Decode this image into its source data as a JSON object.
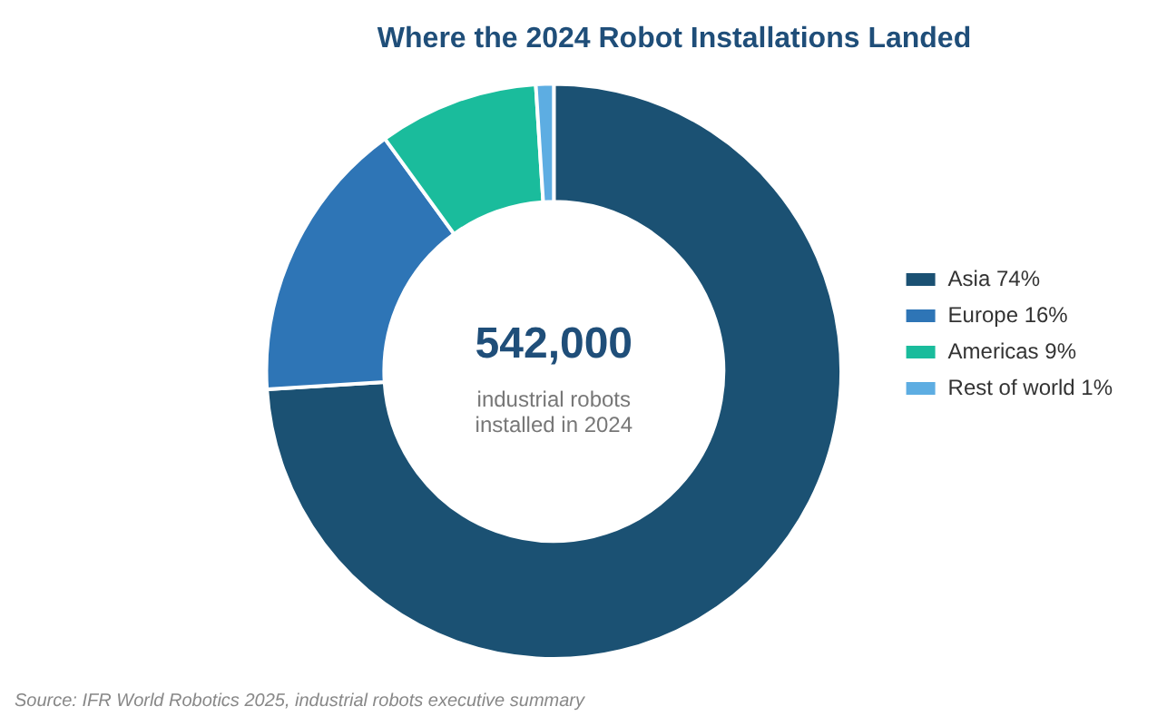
{
  "chart_data": {
    "type": "donut",
    "title": "Where the 2024 Robot Installations Landed",
    "categories": [
      "Asia",
      "Europe",
      "Americas",
      "Rest of world"
    ],
    "values": [
      74,
      16,
      9,
      1
    ],
    "value_labels": [
      "74%",
      "16%",
      "9%",
      "1%"
    ],
    "colors": [
      "#1b5173",
      "#2e75b6",
      "#1abc9c",
      "#5dade2"
    ],
    "legend": "right",
    "annotations": [
      "542,000",
      "industrial robots installed in 2024",
      "Source: IFR World Robotics 2025, industrial robots executive summary"
    ]
  }
}
